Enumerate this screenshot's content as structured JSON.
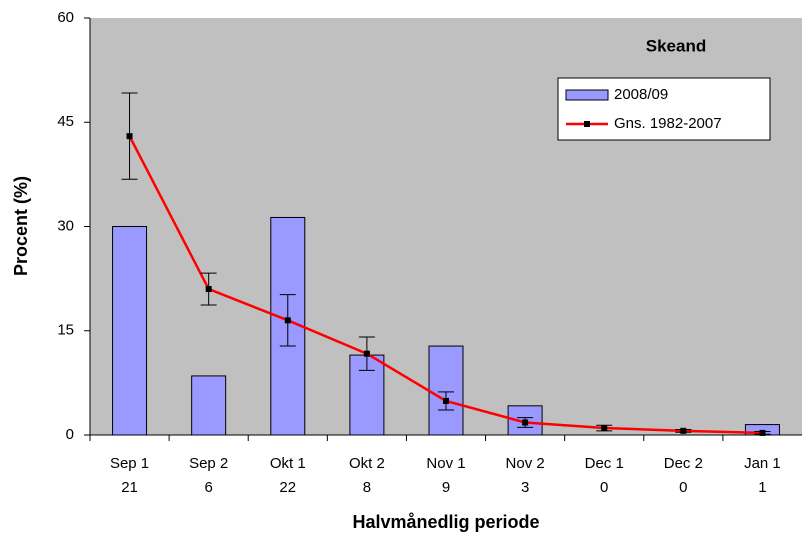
{
  "chart_data": {
    "type": "bar-line",
    "title": "Skeand",
    "x_label": "Halvmånedlig periode",
    "y_label": "Procent (%)",
    "categories": [
      "Sep 1",
      "Sep 2",
      "Okt 1",
      "Okt 2",
      "Nov 1",
      "Nov 2",
      "Dec 1",
      "Dec 2",
      "Jan 1"
    ],
    "counts": [
      21,
      6,
      22,
      8,
      9,
      3,
      0,
      0,
      1
    ],
    "series": [
      {
        "name": "2008/09",
        "type": "bar",
        "color": "#9999ff",
        "values": [
          30,
          8.5,
          31.3,
          11.5,
          12.8,
          4.2,
          0,
          0,
          1.5
        ]
      },
      {
        "name": "Gns. 1982-2007",
        "type": "line",
        "color": "#ff0000",
        "values": [
          43,
          21,
          16.5,
          11.7,
          4.9,
          1.8,
          1.0,
          0.6,
          0.3
        ],
        "errors": [
          6.2,
          2.3,
          3.7,
          2.4,
          1.3,
          0.7,
          0.4,
          0.2,
          0.2
        ]
      }
    ],
    "ylim": [
      0,
      60
    ],
    "yticks": [
      0,
      15,
      30,
      45,
      60
    ],
    "background": "#c0c0c0"
  }
}
